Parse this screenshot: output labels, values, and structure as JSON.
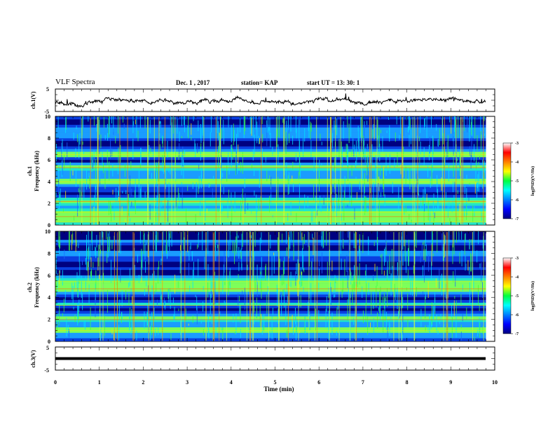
{
  "header": {
    "title": "VLF Spectra",
    "date": "Dec. 1 , 2017",
    "station": "station= KAP",
    "start_ut": "start  UT  =   13: 30: 1"
  },
  "colors": {
    "trace": "#000000",
    "spectrogram_low": "#00007f",
    "spectrogram_mid": "#00c8ff",
    "spectrogram_high": "#ff0000"
  },
  "chart_data": [
    {
      "type": "line",
      "panel": "ch1-waveform",
      "ylabel": "ch.1(V)",
      "ylim": [
        -5,
        5
      ],
      "yticks": [
        "5",
        "-5"
      ],
      "xlim": [
        0,
        10
      ],
      "approx_amplitude_range": [
        -2.5,
        1.5
      ]
    },
    {
      "type": "heatmap",
      "panel": "ch1-spectrogram",
      "ylabel_top": "ch.1",
      "ylabel": "Frequency (kHz)",
      "ylim": [
        0,
        10
      ],
      "yticks": [
        "0",
        "2",
        "4",
        "6",
        "8",
        "10"
      ],
      "xlim": [
        0,
        10
      ],
      "colorbar": {
        "label": "log(PSD)(V²/Hz)",
        "range": [
          -7,
          -3
        ],
        "ticks": [
          "-3",
          "-4",
          "-5",
          "-6",
          "-7"
        ]
      },
      "bright_bands_khz": [
        0.3,
        0.8,
        1.2,
        2.2,
        4.0,
        5.3,
        6.5
      ],
      "dark_bands_khz": [
        2.8,
        6.0,
        7.5,
        9.5
      ]
    },
    {
      "type": "heatmap",
      "panel": "ch2-spectrogram",
      "ylabel_top": "ch.2",
      "ylabel": "Frequency (kHz)",
      "ylim": [
        0,
        10
      ],
      "yticks": [
        "0",
        "2",
        "4",
        "6",
        "8",
        "10"
      ],
      "xlim": [
        0,
        10
      ],
      "colorbar": {
        "label": "log(PSD)(V²/Hz)",
        "range": [
          -7,
          -3
        ],
        "ticks": [
          "-3",
          "-4",
          "-5",
          "-6",
          "-7"
        ]
      },
      "bright_bands_khz": [
        1.0,
        2.0,
        3.3,
        4.8,
        5.5
      ],
      "dark_bands_khz": [
        3.0,
        3.8,
        6.2,
        7.0,
        8.5,
        9.6
      ]
    },
    {
      "type": "line",
      "panel": "ch3-waveform",
      "ylabel": "ch.3(V)",
      "ylim": [
        -5,
        5
      ],
      "yticks": [
        "5",
        "-5"
      ],
      "xlim": [
        0,
        10
      ],
      "constant_value": 0
    }
  ],
  "xaxis": {
    "label": "Time  (min)",
    "ticks": [
      "0",
      "1",
      "2",
      "3",
      "4",
      "5",
      "6",
      "7",
      "8",
      "9",
      "10"
    ],
    "range": [
      0,
      10
    ]
  }
}
